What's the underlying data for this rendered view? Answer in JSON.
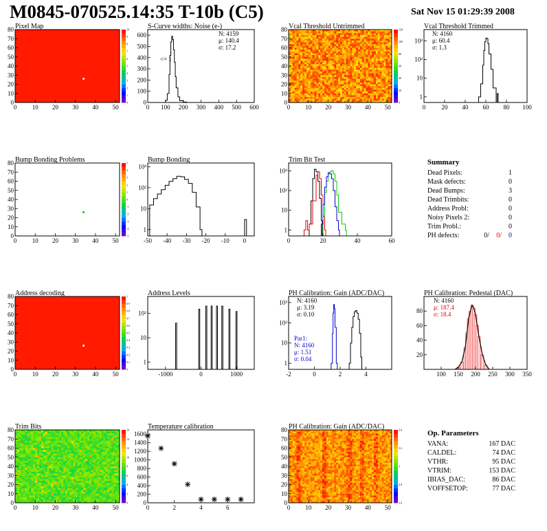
{
  "header": {
    "title": "M0845-070525.14:35 T-10b (C5)",
    "date": "Sat Nov 15 01:29:39 2008"
  },
  "colors": {
    "map_red": "#ff1a00",
    "green": "#00cc00",
    "red": "#e00000",
    "blue": "#0000cc",
    "black": "#000000"
  },
  "chart_data": [
    {
      "id": "pixel_map",
      "type": "heatmap",
      "title": "Pixel Map",
      "xlim": [
        0,
        52
      ],
      "ylim": [
        0,
        80
      ],
      "xticks": [
        0,
        10,
        20,
        30,
        40,
        50
      ],
      "yticks": [
        0,
        10,
        20,
        30,
        40,
        50,
        60,
        70,
        80
      ],
      "palette_ticks": [
        "0",
        "1",
        "2",
        "3",
        "4",
        "5",
        "6",
        "7",
        "8",
        "9",
        "10"
      ],
      "fill": "uniform",
      "value": 10,
      "defects": [
        {
          "x": 34,
          "y": 26,
          "value": 0
        }
      ]
    },
    {
      "id": "scurve_noise",
      "type": "line",
      "title": "S-Curve widths: Noise (e-)",
      "xlim": [
        0,
        600
      ],
      "ylim": [
        0,
        650
      ],
      "xticks": [
        0,
        100,
        200,
        300,
        400,
        500,
        600
      ],
      "yticks": [
        0,
        100,
        200,
        300,
        400,
        500,
        600
      ],
      "x": [
        80,
        100,
        110,
        120,
        125,
        130,
        135,
        140,
        145,
        150,
        155,
        160,
        170,
        180,
        200,
        220
      ],
      "y": [
        0,
        20,
        80,
        250,
        420,
        540,
        590,
        560,
        470,
        360,
        230,
        130,
        50,
        15,
        4,
        0
      ],
      "stats": [
        "N: 4159",
        "μ: 140.4",
        "σ: 17.2"
      ],
      "annotation": "<= 1"
    },
    {
      "id": "vcal_untrimmed",
      "type": "heatmap",
      "title": "Vcal Threshold Untrimmed",
      "xlim": [
        0,
        52
      ],
      "ylim": [
        0,
        80
      ],
      "xticks": [
        0,
        10,
        20,
        30,
        40,
        50
      ],
      "yticks": [
        0,
        10,
        20,
        30,
        40,
        50,
        60,
        70,
        80
      ],
      "palette_ticks": [
        "0",
        "20",
        "40",
        "60",
        "80",
        "100",
        "120"
      ],
      "fill": "noise",
      "scheme": "red-orange"
    },
    {
      "id": "vcal_trimmed",
      "type": "line",
      "title": "Vcal Threshold Trimmed",
      "log": true,
      "xlim": [
        0,
        100
      ],
      "ylim": [
        0.5,
        4000
      ],
      "xticks": [
        0,
        20,
        40,
        60,
        80,
        100
      ],
      "yticks": [
        1,
        10,
        100,
        1000
      ],
      "ytick_labels": [
        "1",
        "10",
        "10²",
        "10³"
      ],
      "x": [
        53,
        55,
        57,
        58,
        59,
        60,
        61,
        62,
        63,
        65,
        67,
        70,
        71,
        72
      ],
      "y": [
        1,
        5,
        50,
        300,
        900,
        1400,
        1300,
        700,
        200,
        30,
        3,
        0.5,
        1.5,
        0.5
      ],
      "stats": [
        "N: 4160",
        "μ: 60.4",
        "σ: 1.3"
      ]
    },
    {
      "id": "bump_problems",
      "type": "heatmap",
      "title": "Bump Bonding Problems",
      "xlim": [
        0,
        52
      ],
      "ylim": [
        0,
        80
      ],
      "xticks": [
        0,
        10,
        20,
        30,
        40,
        50
      ],
      "yticks": [
        0,
        10,
        20,
        30,
        40,
        50,
        60,
        70,
        80
      ],
      "palette_ticks": [
        "-5",
        "-4",
        "-3",
        "-2",
        "-1",
        "0",
        "1",
        "2",
        "3",
        "4",
        "5"
      ],
      "fill": "empty",
      "defects": [
        {
          "x": 34,
          "y": 26,
          "value": 1
        }
      ]
    },
    {
      "id": "bump_bonding",
      "type": "line",
      "title": "Bump Bonding",
      "log": true,
      "xlim": [
        -50,
        5
      ],
      "ylim": [
        0.5,
        1500
      ],
      "xticks": [
        -50,
        -40,
        -30,
        -20,
        -10,
        0
      ],
      "yticks": [
        1,
        10,
        100,
        1000
      ],
      "ytick_labels": [
        "1",
        "10",
        "10²",
        "10³"
      ],
      "x": [
        -49,
        -47,
        -45,
        -43,
        -41,
        -39,
        -37,
        -35,
        -33,
        -31,
        -29,
        -27,
        -25,
        -23,
        -22,
        -1,
        0,
        1
      ],
      "y": [
        15,
        30,
        50,
        80,
        130,
        200,
        270,
        350,
        330,
        250,
        160,
        60,
        12,
        1,
        0.5,
        0.5,
        3,
        0.5
      ]
    },
    {
      "id": "trim_bit_test",
      "type": "line",
      "title": "Trim Bit Test",
      "log": true,
      "xlim": [
        0,
        60
      ],
      "ylim": [
        0.5,
        2500
      ],
      "xticks": [
        0,
        20,
        40,
        60
      ],
      "yticks": [
        1,
        10,
        100,
        1000
      ],
      "ytick_labels": [
        "1",
        "10",
        "10²",
        "10³"
      ],
      "series": [
        {
          "color": "#000000",
          "x": [
            12,
            13,
            14,
            15,
            16,
            17,
            18,
            19
          ],
          "y": [
            2,
            30,
            400,
            1200,
            900,
            300,
            40,
            3
          ]
        },
        {
          "color": "#e00000",
          "x": [
            9,
            10,
            11,
            12,
            14,
            16,
            17,
            18,
            19,
            20,
            21
          ],
          "y": [
            1,
            3,
            1,
            2,
            30,
            600,
            900,
            400,
            60,
            5,
            1
          ]
        },
        {
          "color": "#00cc00",
          "x": [
            20,
            21,
            22,
            23,
            24,
            25,
            26,
            27,
            28,
            29,
            31,
            33
          ],
          "y": [
            5,
            80,
            300,
            700,
            900,
            1000,
            700,
            300,
            60,
            8,
            2,
            1
          ]
        },
        {
          "color": "#0000cc",
          "x": [
            19,
            20,
            21,
            22,
            23,
            24,
            25,
            26,
            27,
            28,
            29
          ],
          "y": [
            2,
            20,
            150,
            500,
            800,
            700,
            400,
            100,
            15,
            3,
            1
          ]
        }
      ]
    },
    {
      "id": "address_decoding",
      "type": "heatmap",
      "title": "Address decoding",
      "xlim": [
        0,
        52
      ],
      "ylim": [
        0,
        80
      ],
      "xticks": [
        0,
        10,
        20,
        30,
        40,
        50
      ],
      "yticks": [
        0,
        10,
        20,
        30,
        40,
        50,
        60,
        70,
        80
      ],
      "palette_ticks": [
        "0",
        "0.1",
        "0.2",
        "0.3",
        "0.4",
        "0.5",
        "0.6",
        "0.7",
        "0.8",
        "0.9",
        "1"
      ],
      "fill": "uniform",
      "value": 1,
      "defects": [
        {
          "x": 34,
          "y": 26,
          "value": 0
        }
      ]
    },
    {
      "id": "address_levels",
      "type": "line",
      "title": "Address Levels",
      "log": true,
      "xlim": [
        -1500,
        1500
      ],
      "ylim": [
        0.5,
        500
      ],
      "xticks": [
        -1000,
        0,
        1000
      ],
      "yticks": [
        1,
        10,
        100
      ],
      "ytick_labels": [
        "1",
        "10",
        "10²"
      ],
      "peaks": [
        -700,
        -50,
        150,
        300,
        450,
        600,
        800,
        1000
      ],
      "peak_heights": [
        40,
        150,
        200,
        200,
        200,
        200,
        150,
        120
      ]
    },
    {
      "id": "ph_gain",
      "type": "line",
      "title": "PH Calibration: Gain (ADC/DAC)",
      "log": true,
      "xlim": [
        -2,
        6
      ],
      "ylim": [
        0.5,
        2000
      ],
      "xticks": [
        -2,
        0,
        2,
        4
      ],
      "yticks": [
        1,
        10,
        100,
        1000
      ],
      "ytick_labels": [
        "1",
        "10",
        "10²",
        "10³"
      ],
      "series": [
        {
          "color": "#000000",
          "x": [
            2.7,
            2.8,
            2.9,
            3.0,
            3.1,
            3.2,
            3.3,
            3.4,
            3.5,
            3.6
          ],
          "y": [
            1,
            10,
            60,
            200,
            350,
            400,
            300,
            150,
            30,
            2
          ]
        },
        {
          "color": "#0000cc",
          "x": [
            1.3,
            1.4,
            1.45,
            1.5,
            1.55,
            1.6,
            1.7
          ],
          "y": [
            1,
            30,
            300,
            800,
            500,
            60,
            1
          ]
        }
      ],
      "stats": [
        "N: 4160",
        "μ: 3.19",
        "σ: 0.10"
      ],
      "stats2": [
        "Par1:",
        "N: 4160",
        "μ: 1.51",
        "σ: 0.04"
      ]
    },
    {
      "id": "ph_pedestal",
      "type": "bar",
      "title": "PH Calibration: Pedestal (DAC)",
      "xlim": [
        50,
        350
      ],
      "ylim": [
        0,
        100
      ],
      "xticks": [
        100,
        150,
        200,
        250,
        300,
        350
      ],
      "yticks": [
        20,
        40,
        60,
        80
      ],
      "x": [
        140,
        150,
        160,
        170,
        175,
        180,
        185,
        190,
        195,
        200,
        205,
        210,
        220,
        230,
        240
      ],
      "y": [
        0,
        3,
        10,
        30,
        50,
        70,
        80,
        88,
        84,
        75,
        60,
        45,
        20,
        6,
        0
      ],
      "stats": [
        "N: 4160",
        "μ: 187.4",
        "σ: 18.4"
      ],
      "stat_colors": [
        "#000000",
        "#e00000",
        "#e00000"
      ]
    },
    {
      "id": "trim_bits",
      "type": "heatmap",
      "title": "Trim Bits",
      "xlim": [
        0,
        52
      ],
      "ylim": [
        0,
        80
      ],
      "xticks": [
        0,
        10,
        20,
        30,
        40,
        50
      ],
      "yticks": [
        0,
        10,
        20,
        30,
        40,
        50,
        60,
        70,
        80
      ],
      "palette_ticks": [
        "0",
        "2",
        "4",
        "6",
        "8",
        "10",
        "12",
        "14",
        "16"
      ],
      "fill": "noise",
      "scheme": "green"
    },
    {
      "id": "temperature",
      "type": "scatter",
      "title": "Temperature calibration",
      "xlim": [
        0,
        8
      ],
      "ylim": [
        0,
        1700
      ],
      "xticks": [
        0,
        2,
        4,
        6
      ],
      "yticks": [
        0,
        200,
        400,
        600,
        800,
        1000,
        1200,
        1400,
        1600
      ],
      "x": [
        0,
        1,
        2,
        3,
        4,
        5,
        6,
        7
      ],
      "y": [
        1560,
        1270,
        910,
        430,
        80,
        80,
        80,
        80
      ]
    },
    {
      "id": "ph_gain_map",
      "type": "heatmap",
      "title": "PH Calibration: Gain (ADC/DAC)",
      "xlim": [
        0,
        52
      ],
      "ylim": [
        0,
        80
      ],
      "xticks": [
        0,
        10,
        20,
        30,
        40,
        50
      ],
      "yticks": [
        0,
        10,
        20,
        30,
        40,
        50,
        60,
        70,
        80
      ],
      "palette_ticks": [
        "2.6",
        "2.8",
        "3",
        "3.2",
        "3.4"
      ],
      "fill": "noise",
      "scheme": "red-columns"
    }
  ],
  "summary": {
    "title": "Summary",
    "rows": [
      {
        "label": "Dead Pixels:",
        "value": "1"
      },
      {
        "label": "Mask defects:",
        "value": "0"
      },
      {
        "label": "Dead Bumps:",
        "value": "3"
      },
      {
        "label": "Dead Trimbits:",
        "value": "0"
      },
      {
        "label": "Address Probl:",
        "value": "0"
      },
      {
        "label": "Noisy Pixels 2:",
        "value": "0"
      },
      {
        "label": "Trim Probl.:",
        "value": "0"
      }
    ],
    "ph_defects_label": "PH defects:",
    "ph_defects_values": [
      "0/",
      "0/",
      "0"
    ]
  },
  "op_params": {
    "title": "Op. Parameters",
    "rows": [
      {
        "label": "VANA:",
        "value": "167 DAC"
      },
      {
        "label": "CALDEL:",
        "value": "74 DAC"
      },
      {
        "label": "VTHR:",
        "value": "95 DAC"
      },
      {
        "label": "VTRIM:",
        "value": "153 DAC"
      },
      {
        "label": "IBIAS_DAC:",
        "value": "86 DAC"
      },
      {
        "label": "VOFFSETOP:",
        "value": "77 DAC"
      }
    ]
  }
}
